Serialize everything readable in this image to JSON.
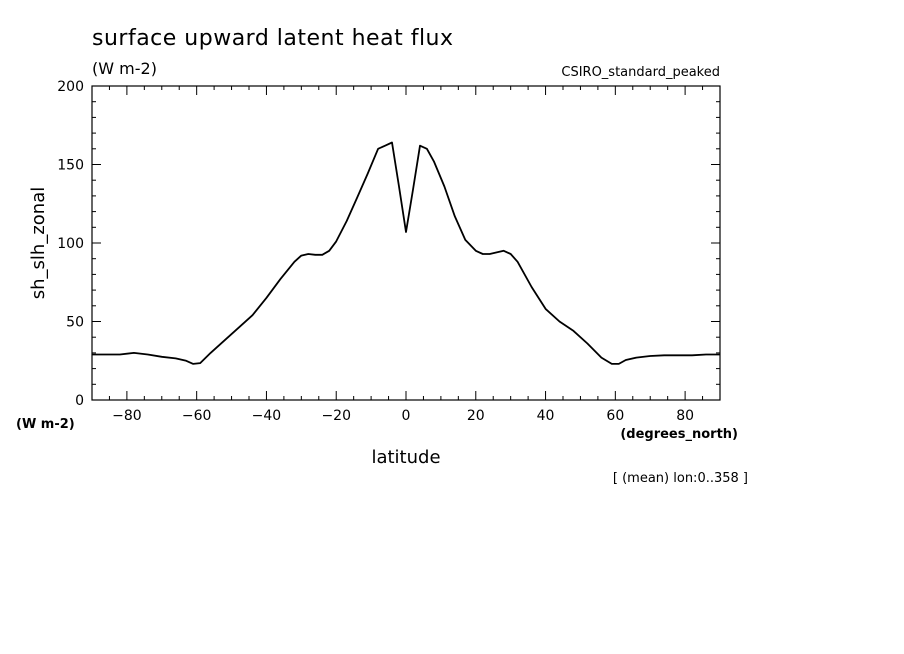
{
  "chart_data": {
    "type": "line",
    "title": "surface upward latent heat flux",
    "units": "(W m-2)",
    "dataset": "CSIRO_standard_peaked",
    "ylabel": "sh_slh_zonal",
    "yunits": "(W m-2)",
    "xlabel": "latitude",
    "xunits": "(degrees_north)",
    "footnote": "[ (mean) lon:0..358 ]",
    "xlim": [
      -90,
      90
    ],
    "ylim": [
      0,
      200
    ],
    "xticks": [
      -80,
      -60,
      -40,
      -20,
      0,
      20,
      40,
      60,
      80
    ],
    "yticks": [
      0,
      50,
      100,
      150,
      200
    ],
    "grid": false,
    "series": [
      {
        "x": [
          -90,
          -86,
          -82,
          -78,
          -74,
          -70,
          -66,
          -63,
          -61,
          -59,
          -56,
          -52,
          -48,
          -44,
          -40,
          -36,
          -32,
          -30,
          -28,
          -26,
          -24,
          -22,
          -20,
          -17,
          -14,
          -11,
          -8,
          -6,
          -4,
          -2,
          0,
          2,
          4,
          6,
          8,
          11,
          14,
          17,
          20,
          22,
          24,
          26,
          28,
          30,
          32,
          36,
          40,
          44,
          48,
          52,
          56,
          59,
          61,
          63,
          66,
          70,
          74,
          78,
          82,
          86,
          90
        ],
        "y": [
          29,
          29,
          29,
          30,
          29,
          27.5,
          26.5,
          25,
          23,
          23.5,
          30,
          38,
          46,
          54,
          65,
          77,
          88,
          92,
          93,
          92.5,
          92.5,
          95,
          101,
          114,
          129,
          144,
          160,
          162,
          164,
          136,
          107,
          134,
          162,
          160,
          152,
          136,
          117,
          102,
          95,
          93,
          93,
          94,
          95,
          93,
          88,
          72,
          58,
          50,
          44,
          36,
          27,
          23,
          23,
          25.5,
          27,
          28,
          28.5,
          28.5,
          28.5,
          29,
          29
        ]
      }
    ]
  }
}
